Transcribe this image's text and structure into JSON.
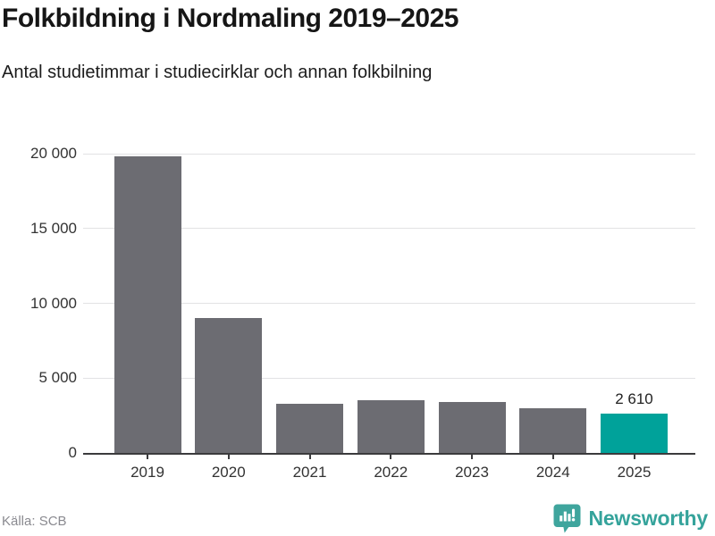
{
  "header": {
    "title": "Folkbildning i Nordmaling 2019–2025",
    "subtitle": "Antal studietimmar i studiecirklar och annan folkbilning"
  },
  "chart_data": {
    "type": "bar",
    "title": "Folkbildning i Nordmaling 2019–2025",
    "subtitle": "Antal studietimmar i studiecirklar och annan folkbilning",
    "categories": [
      "2019",
      "2020",
      "2021",
      "2022",
      "2023",
      "2024",
      "2025"
    ],
    "values": [
      19800,
      9000,
      3300,
      3500,
      3400,
      3000,
      2610
    ],
    "highlight_index": 6,
    "highlight_label": "2 610",
    "ylim": [
      0,
      20000
    ],
    "yticks": [
      0,
      5000,
      10000,
      15000,
      20000
    ],
    "ytick_labels": [
      "0",
      "5 000",
      "10 000",
      "15 000",
      "20 000"
    ],
    "grid": true,
    "legend": "none",
    "bar_color": "#6c6c72",
    "highlight_color": "#00a29a",
    "xlabel": "",
    "ylabel": ""
  },
  "footer": {
    "source": "Källa: SCB",
    "brand": "Newsworthy",
    "brand_color": "#35a39b",
    "brand_icon": "newsworthy-bubble-chart-icon"
  }
}
